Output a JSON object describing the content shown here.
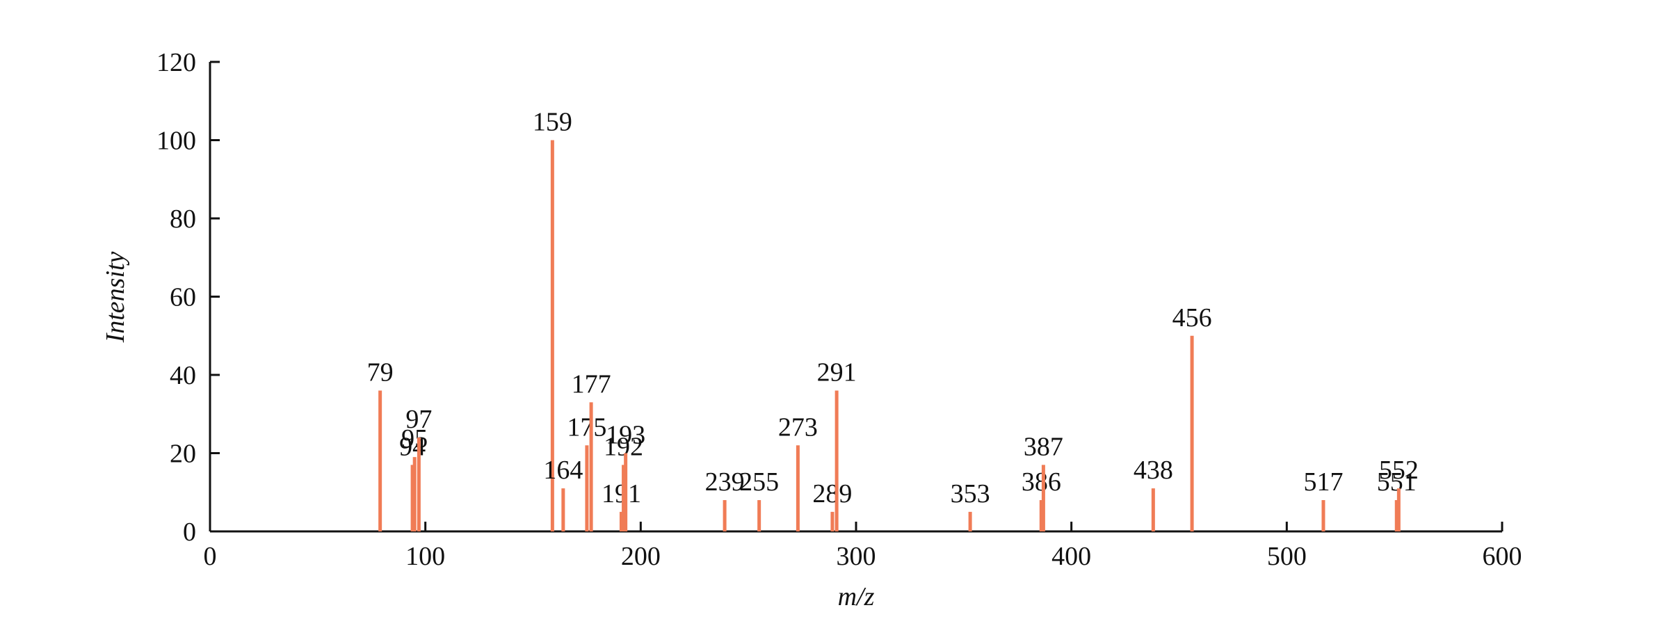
{
  "chart_data": {
    "type": "stem",
    "xlabel": "m/z",
    "ylabel": "Intensity",
    "x": [
      79,
      94,
      95,
      97,
      159,
      164,
      175,
      177,
      191,
      192,
      193,
      239,
      255,
      273,
      289,
      291,
      353,
      386,
      387,
      438,
      456,
      517,
      551,
      552
    ],
    "values": [
      36,
      17,
      19,
      24,
      100,
      11,
      22,
      33,
      5,
      17,
      20,
      8,
      8,
      22,
      5,
      36,
      5,
      8,
      17,
      11,
      50,
      8,
      8,
      11
    ],
    "color": "#f07c56",
    "xlim": [
      0,
      600
    ],
    "xticks": [
      0,
      100,
      200,
      300,
      400,
      500,
      600
    ],
    "ylim": [
      0,
      120
    ],
    "yticks": [
      0,
      20,
      40,
      60,
      80,
      100,
      120
    ]
  }
}
